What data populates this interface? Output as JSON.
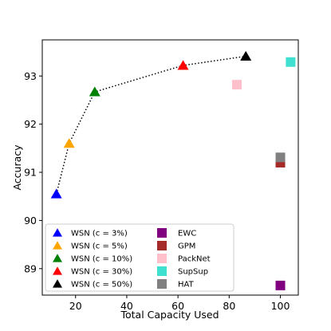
{
  "chart_data": {
    "type": "scatter",
    "xlabel": "Total Capacity Used",
    "ylabel": "Accuracy",
    "xlim": [
      7,
      107
    ],
    "ylim": [
      88.45,
      93.75
    ],
    "xticks": [
      "20",
      "40",
      "60",
      "80",
      "100"
    ],
    "yticks": [
      "89",
      "90",
      "91",
      "92",
      "93"
    ],
    "grid": false,
    "legend_position": "lower-left",
    "line": {
      "style": "dotted",
      "color": "#000000",
      "x": [
        12.5,
        17.5,
        27.5,
        62,
        86.5
      ],
      "y": [
        90.55,
        91.6,
        92.67,
        93.22,
        93.41
      ]
    },
    "series": [
      {
        "name": "WSN (c = 3%)",
        "marker": "triangle",
        "color": "#0000ff",
        "x": [
          12.5
        ],
        "y": [
          90.55
        ]
      },
      {
        "name": "WSN (c = 5%)",
        "marker": "triangle",
        "color": "#ffa500",
        "x": [
          17.5
        ],
        "y": [
          91.6
        ]
      },
      {
        "name": "WSN (c = 10%)",
        "marker": "triangle",
        "color": "#008000",
        "x": [
          27.5
        ],
        "y": [
          92.67
        ]
      },
      {
        "name": "WSN (c = 30%)",
        "marker": "triangle",
        "color": "#ff0000",
        "x": [
          62
        ],
        "y": [
          93.22
        ]
      },
      {
        "name": "WSN (c = 50%)",
        "marker": "triangle",
        "color": "#000000",
        "x": [
          86.5
        ],
        "y": [
          93.41
        ]
      },
      {
        "name": "EWC",
        "marker": "square",
        "color": "#800080",
        "x": [
          100
        ],
        "y": [
          88.65
        ]
      },
      {
        "name": "GPM",
        "marker": "square",
        "color": "#a52a2a",
        "x": [
          100
        ],
        "y": [
          91.2
        ]
      },
      {
        "name": "PackNet",
        "marker": "square",
        "color": "#ffc0cb",
        "x": [
          83
        ],
        "y": [
          92.82
        ]
      },
      {
        "name": "SupSup",
        "marker": "square",
        "color": "#40e0d0",
        "x": [
          104
        ],
        "y": [
          93.29
        ]
      },
      {
        "name": "HAT",
        "marker": "square",
        "color": "#808080",
        "x": [
          100
        ],
        "y": [
          91.31
        ]
      }
    ]
  }
}
